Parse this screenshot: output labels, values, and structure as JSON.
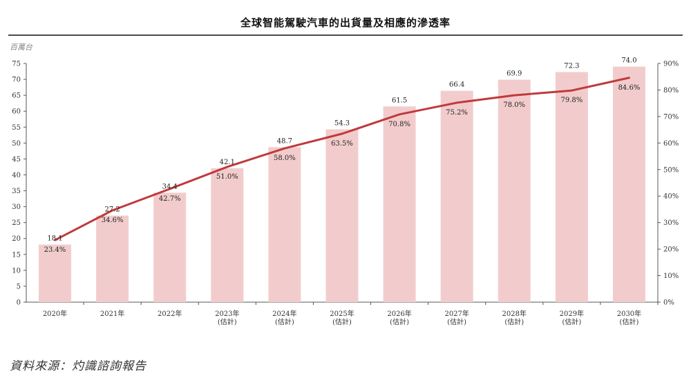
{
  "title": "全球智能駕駛汽車的出貨量及相應的滲透率",
  "source": "資料來源：灼識諮詢報告",
  "chart_data": {
    "type": "bar",
    "title": "全球智能駕駛汽車的出貨量及相應的滲透率",
    "y_unit_label": "百萬台",
    "categories": [
      {
        "year": "2020年",
        "note": ""
      },
      {
        "year": "2021年",
        "note": ""
      },
      {
        "year": "2022年",
        "note": ""
      },
      {
        "year": "2023年",
        "note": "(估計)"
      },
      {
        "year": "2024年",
        "note": "(估計)"
      },
      {
        "year": "2025年",
        "note": "(估計)"
      },
      {
        "year": "2026年",
        "note": "(估計)"
      },
      {
        "year": "2027年",
        "note": "(估計)"
      },
      {
        "year": "2028年",
        "note": "(估計)"
      },
      {
        "year": "2029年",
        "note": "(估計)"
      },
      {
        "year": "2030年",
        "note": "(估計)"
      }
    ],
    "series": [
      {
        "type": "bar",
        "values": [
          18.1,
          27.2,
          34.4,
          42.1,
          48.7,
          54.3,
          61.5,
          66.4,
          69.9,
          72.3,
          74.0
        ],
        "labels": [
          "18.1",
          "27.2",
          "34.4",
          "42.1",
          "48.7",
          "54.3",
          "61.5",
          "66.4",
          "69.9",
          "72.3",
          "74.0"
        ],
        "color": "#f2cccc",
        "axis": "left"
      },
      {
        "type": "line",
        "values": [
          23.4,
          34.6,
          42.7,
          51.0,
          58.0,
          63.5,
          70.8,
          75.2,
          78.0,
          79.8,
          84.6
        ],
        "labels": [
          "23.4%",
          "34.6%",
          "42.7%",
          "51.0%",
          "58.0%",
          "63.5%",
          "70.8%",
          "75.2%",
          "78.0%",
          "79.8%",
          "84.6%"
        ],
        "color": "#c0393b",
        "axis": "right"
      }
    ],
    "y_left": {
      "min": 0,
      "max": 75,
      "step": 5,
      "ticks": [
        "0",
        "5",
        "10",
        "15",
        "20",
        "25",
        "30",
        "35",
        "40",
        "45",
        "50",
        "55",
        "60",
        "65",
        "70",
        "75"
      ]
    },
    "y_right": {
      "min": 0,
      "max": 90,
      "step": 10,
      "ticks": [
        "0%",
        "10%",
        "20%",
        "30%",
        "40%",
        "50%",
        "60%",
        "70%",
        "80%",
        "90%"
      ]
    },
    "grid": false,
    "legend": "none"
  }
}
